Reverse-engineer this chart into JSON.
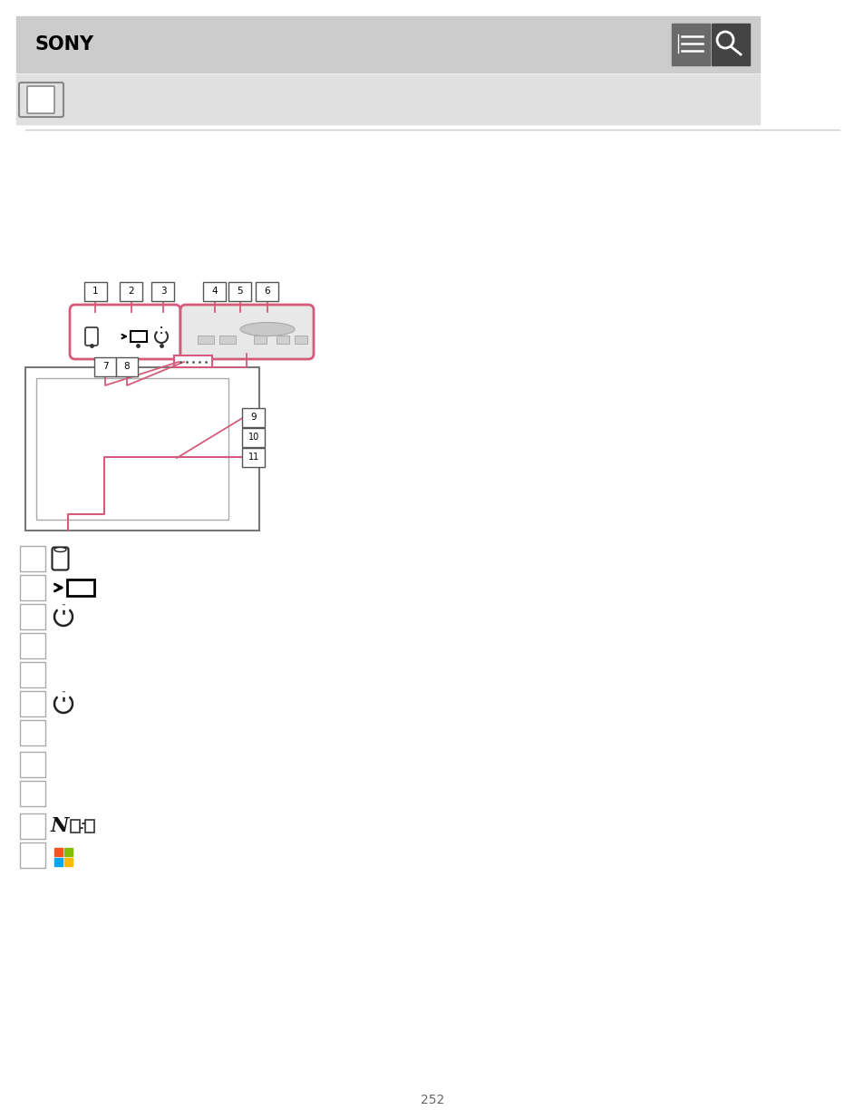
{
  "bg_color": "#ffffff",
  "header_bg": "#cccccc",
  "header_text": "SONY",
  "subheader_bg": "#e0e0e0",
  "page_number": "252",
  "pink": "#d45c7a",
  "dark": "#333333",
  "gray": "#888888",
  "btn_dark": "#666666",
  "btn_darker": "#444444"
}
